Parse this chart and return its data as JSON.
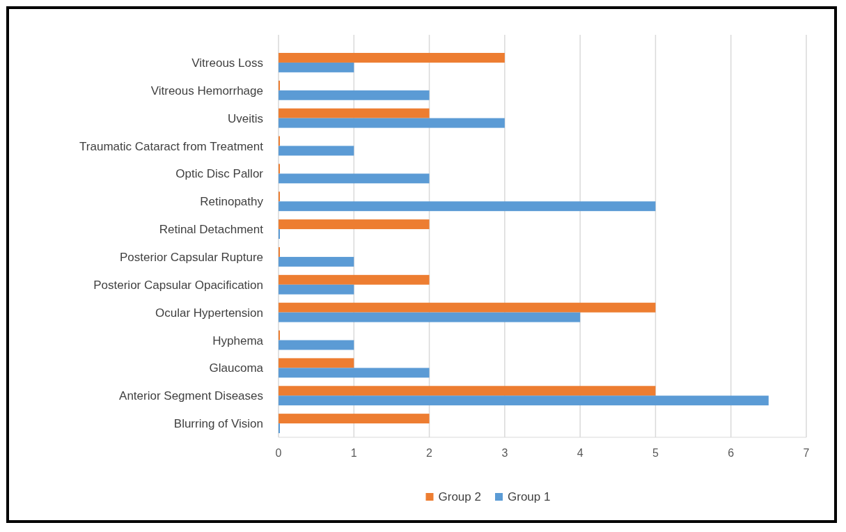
{
  "chart_data": {
    "type": "bar",
    "orientation": "horizontal",
    "categories": [
      "Vitreous Loss",
      "Vitreous Hemorrhage",
      "Uveitis",
      "Traumatic Cataract from Treatment",
      "Optic Disc Pallor",
      "Retinopathy",
      "Retinal Detachment",
      "Posterior Capsular Rupture",
      "Posterior Capsular Opacification",
      "Ocular Hypertension",
      "Hyphema",
      "Glaucoma",
      "Anterior Segment Diseases",
      "Blurring of Vision"
    ],
    "series": [
      {
        "name": "Group 2",
        "color": "#ed7d31",
        "values": [
          3,
          0,
          2,
          0,
          0,
          0,
          2,
          0,
          2,
          5,
          0,
          1,
          5,
          2
        ]
      },
      {
        "name": "Group 1",
        "color": "#5b9bd5",
        "values": [
          1,
          2,
          3,
          1,
          2,
          5,
          0,
          1,
          1,
          4,
          1,
          2,
          6.5,
          0
        ]
      }
    ],
    "xlim": [
      0,
      7
    ],
    "xticks": [
      0,
      1,
      2,
      3,
      4,
      5,
      6,
      7
    ],
    "grid": "x",
    "legend": "bottom"
  }
}
